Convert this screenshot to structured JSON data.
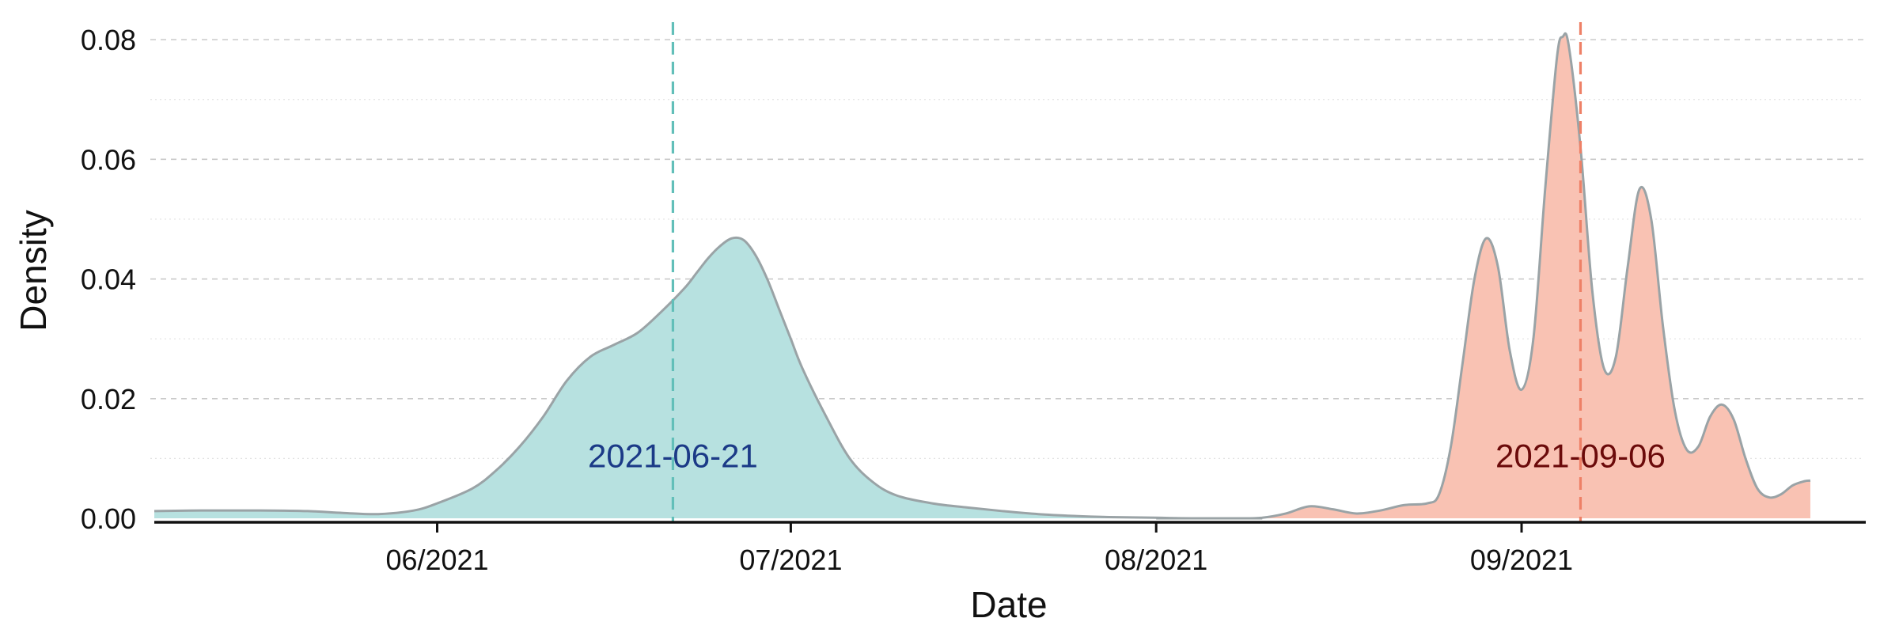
{
  "chart_data": {
    "type": "area",
    "title": "",
    "xlabel": "Date",
    "ylabel": "Density",
    "x_axis_type": "date",
    "xlim": [
      "2021-05-08",
      "2021-09-30"
    ],
    "ylim": [
      0,
      0.082
    ],
    "x_ticks": [
      {
        "date": "2021-06-01",
        "label": "06/2021"
      },
      {
        "date": "2021-07-01",
        "label": "07/2021"
      },
      {
        "date": "2021-08-01",
        "label": "08/2021"
      },
      {
        "date": "2021-09-01",
        "label": "09/2021"
      }
    ],
    "y_ticks": [
      {
        "value": 0.0,
        "label": "0.00"
      },
      {
        "value": 0.02,
        "label": "0.02"
      },
      {
        "value": 0.04,
        "label": "0.04"
      },
      {
        "value": 0.06,
        "label": "0.06"
      },
      {
        "value": 0.08,
        "label": "0.08"
      }
    ],
    "y_minor_ticks": [
      0.01,
      0.03,
      0.05,
      0.07
    ],
    "grid": true,
    "series": [
      {
        "color": "#b7e1e0",
        "points": [
          [
            "2021-05-08",
            0.0012
          ],
          [
            "2021-05-12",
            0.0013
          ],
          [
            "2021-05-17",
            0.0013
          ],
          [
            "2021-05-21",
            0.0012
          ],
          [
            "2021-05-24",
            0.0009
          ],
          [
            "2021-05-27",
            0.0007
          ],
          [
            "2021-05-30",
            0.0013
          ],
          [
            "2021-06-01",
            0.0025
          ],
          [
            "2021-06-04",
            0.005
          ],
          [
            "2021-06-06",
            0.008
          ],
          [
            "2021-06-08",
            0.012
          ],
          [
            "2021-06-10",
            0.017
          ],
          [
            "2021-06-12",
            0.023
          ],
          [
            "2021-06-14",
            0.027
          ],
          [
            "2021-06-16",
            0.029
          ],
          [
            "2021-06-18",
            0.031
          ],
          [
            "2021-06-20",
            0.0345
          ],
          [
            "2021-06-22",
            0.0385
          ],
          [
            "2021-06-23",
            0.041
          ],
          [
            "2021-06-24",
            0.0435
          ],
          [
            "2021-06-25",
            0.0455
          ],
          [
            "2021-06-26",
            0.0468
          ],
          [
            "2021-06-27",
            0.0465
          ],
          [
            "2021-06-28",
            0.044
          ],
          [
            "2021-06-29",
            0.04
          ],
          [
            "2021-06-30",
            0.035
          ],
          [
            "2021-07-01",
            0.03
          ],
          [
            "2021-07-02",
            0.025
          ],
          [
            "2021-07-04",
            0.017
          ],
          [
            "2021-07-06",
            0.01
          ],
          [
            "2021-07-08",
            0.006
          ],
          [
            "2021-07-10",
            0.0038
          ],
          [
            "2021-07-13",
            0.0025
          ],
          [
            "2021-07-16",
            0.0018
          ],
          [
            "2021-07-19",
            0.0012
          ],
          [
            "2021-07-22",
            0.0007
          ],
          [
            "2021-07-25",
            0.0004
          ],
          [
            "2021-07-28",
            0.0002
          ],
          [
            "2021-08-01",
            0.0001
          ],
          [
            "2021-08-04",
            0.0
          ],
          [
            "2021-08-10",
            0.0
          ]
        ],
        "median_date": "2021-06-21",
        "median_label": "2021-06-21",
        "median_line_color": "#62bfb9",
        "median_label_color": "#1b3a87"
      },
      {
        "color": "#f9c2b3",
        "points": [
          [
            "2021-08-01",
            0.0
          ],
          [
            "2021-08-08",
            0.0
          ],
          [
            "2021-08-10",
            0.0001
          ],
          [
            "2021-08-12",
            0.0008
          ],
          [
            "2021-08-14",
            0.002
          ],
          [
            "2021-08-16",
            0.0015
          ],
          [
            "2021-08-18",
            0.0008
          ],
          [
            "2021-08-20",
            0.0013
          ],
          [
            "2021-08-22",
            0.0022
          ],
          [
            "2021-08-24",
            0.0025
          ],
          [
            "2021-08-25",
            0.004
          ],
          [
            "2021-08-26",
            0.012
          ],
          [
            "2021-08-27",
            0.026
          ],
          [
            "2021-08-28",
            0.04
          ],
          [
            "2021-08-29",
            0.0468
          ],
          [
            "2021-08-30",
            0.042
          ],
          [
            "2021-08-31",
            0.028
          ],
          [
            "2021-09-01",
            0.0215
          ],
          [
            "2021-09-02",
            0.03
          ],
          [
            "2021-09-03",
            0.055
          ],
          [
            "2021-09-04",
            0.077
          ],
          [
            "2021-09-04T12:00",
            0.0805
          ],
          [
            "2021-09-05",
            0.079
          ],
          [
            "2021-09-06",
            0.062
          ],
          [
            "2021-09-07",
            0.038
          ],
          [
            "2021-09-08",
            0.025
          ],
          [
            "2021-09-09",
            0.027
          ],
          [
            "2021-09-10",
            0.042
          ],
          [
            "2021-09-11",
            0.055
          ],
          [
            "2021-09-12",
            0.05
          ],
          [
            "2021-09-13",
            0.032
          ],
          [
            "2021-09-14",
            0.018
          ],
          [
            "2021-09-15",
            0.0115
          ],
          [
            "2021-09-16",
            0.012
          ],
          [
            "2021-09-17",
            0.017
          ],
          [
            "2021-09-18",
            0.019
          ],
          [
            "2021-09-19",
            0.0165
          ],
          [
            "2021-09-20",
            0.01
          ],
          [
            "2021-09-21",
            0.005
          ],
          [
            "2021-09-22",
            0.0035
          ],
          [
            "2021-09-23",
            0.004
          ],
          [
            "2021-09-24",
            0.0055
          ],
          [
            "2021-09-25",
            0.0062
          ],
          [
            "2021-09-25T12:00",
            0.0063
          ]
        ],
        "median_date": "2021-09-06",
        "median_label": "2021-09-06",
        "median_line_color": "#ee8066",
        "median_label_color": "#6b0a0a"
      }
    ],
    "curve_stroke_color": "#9aa3a6",
    "axis_color": "#111111",
    "grid_color": "#c9c9c9"
  }
}
